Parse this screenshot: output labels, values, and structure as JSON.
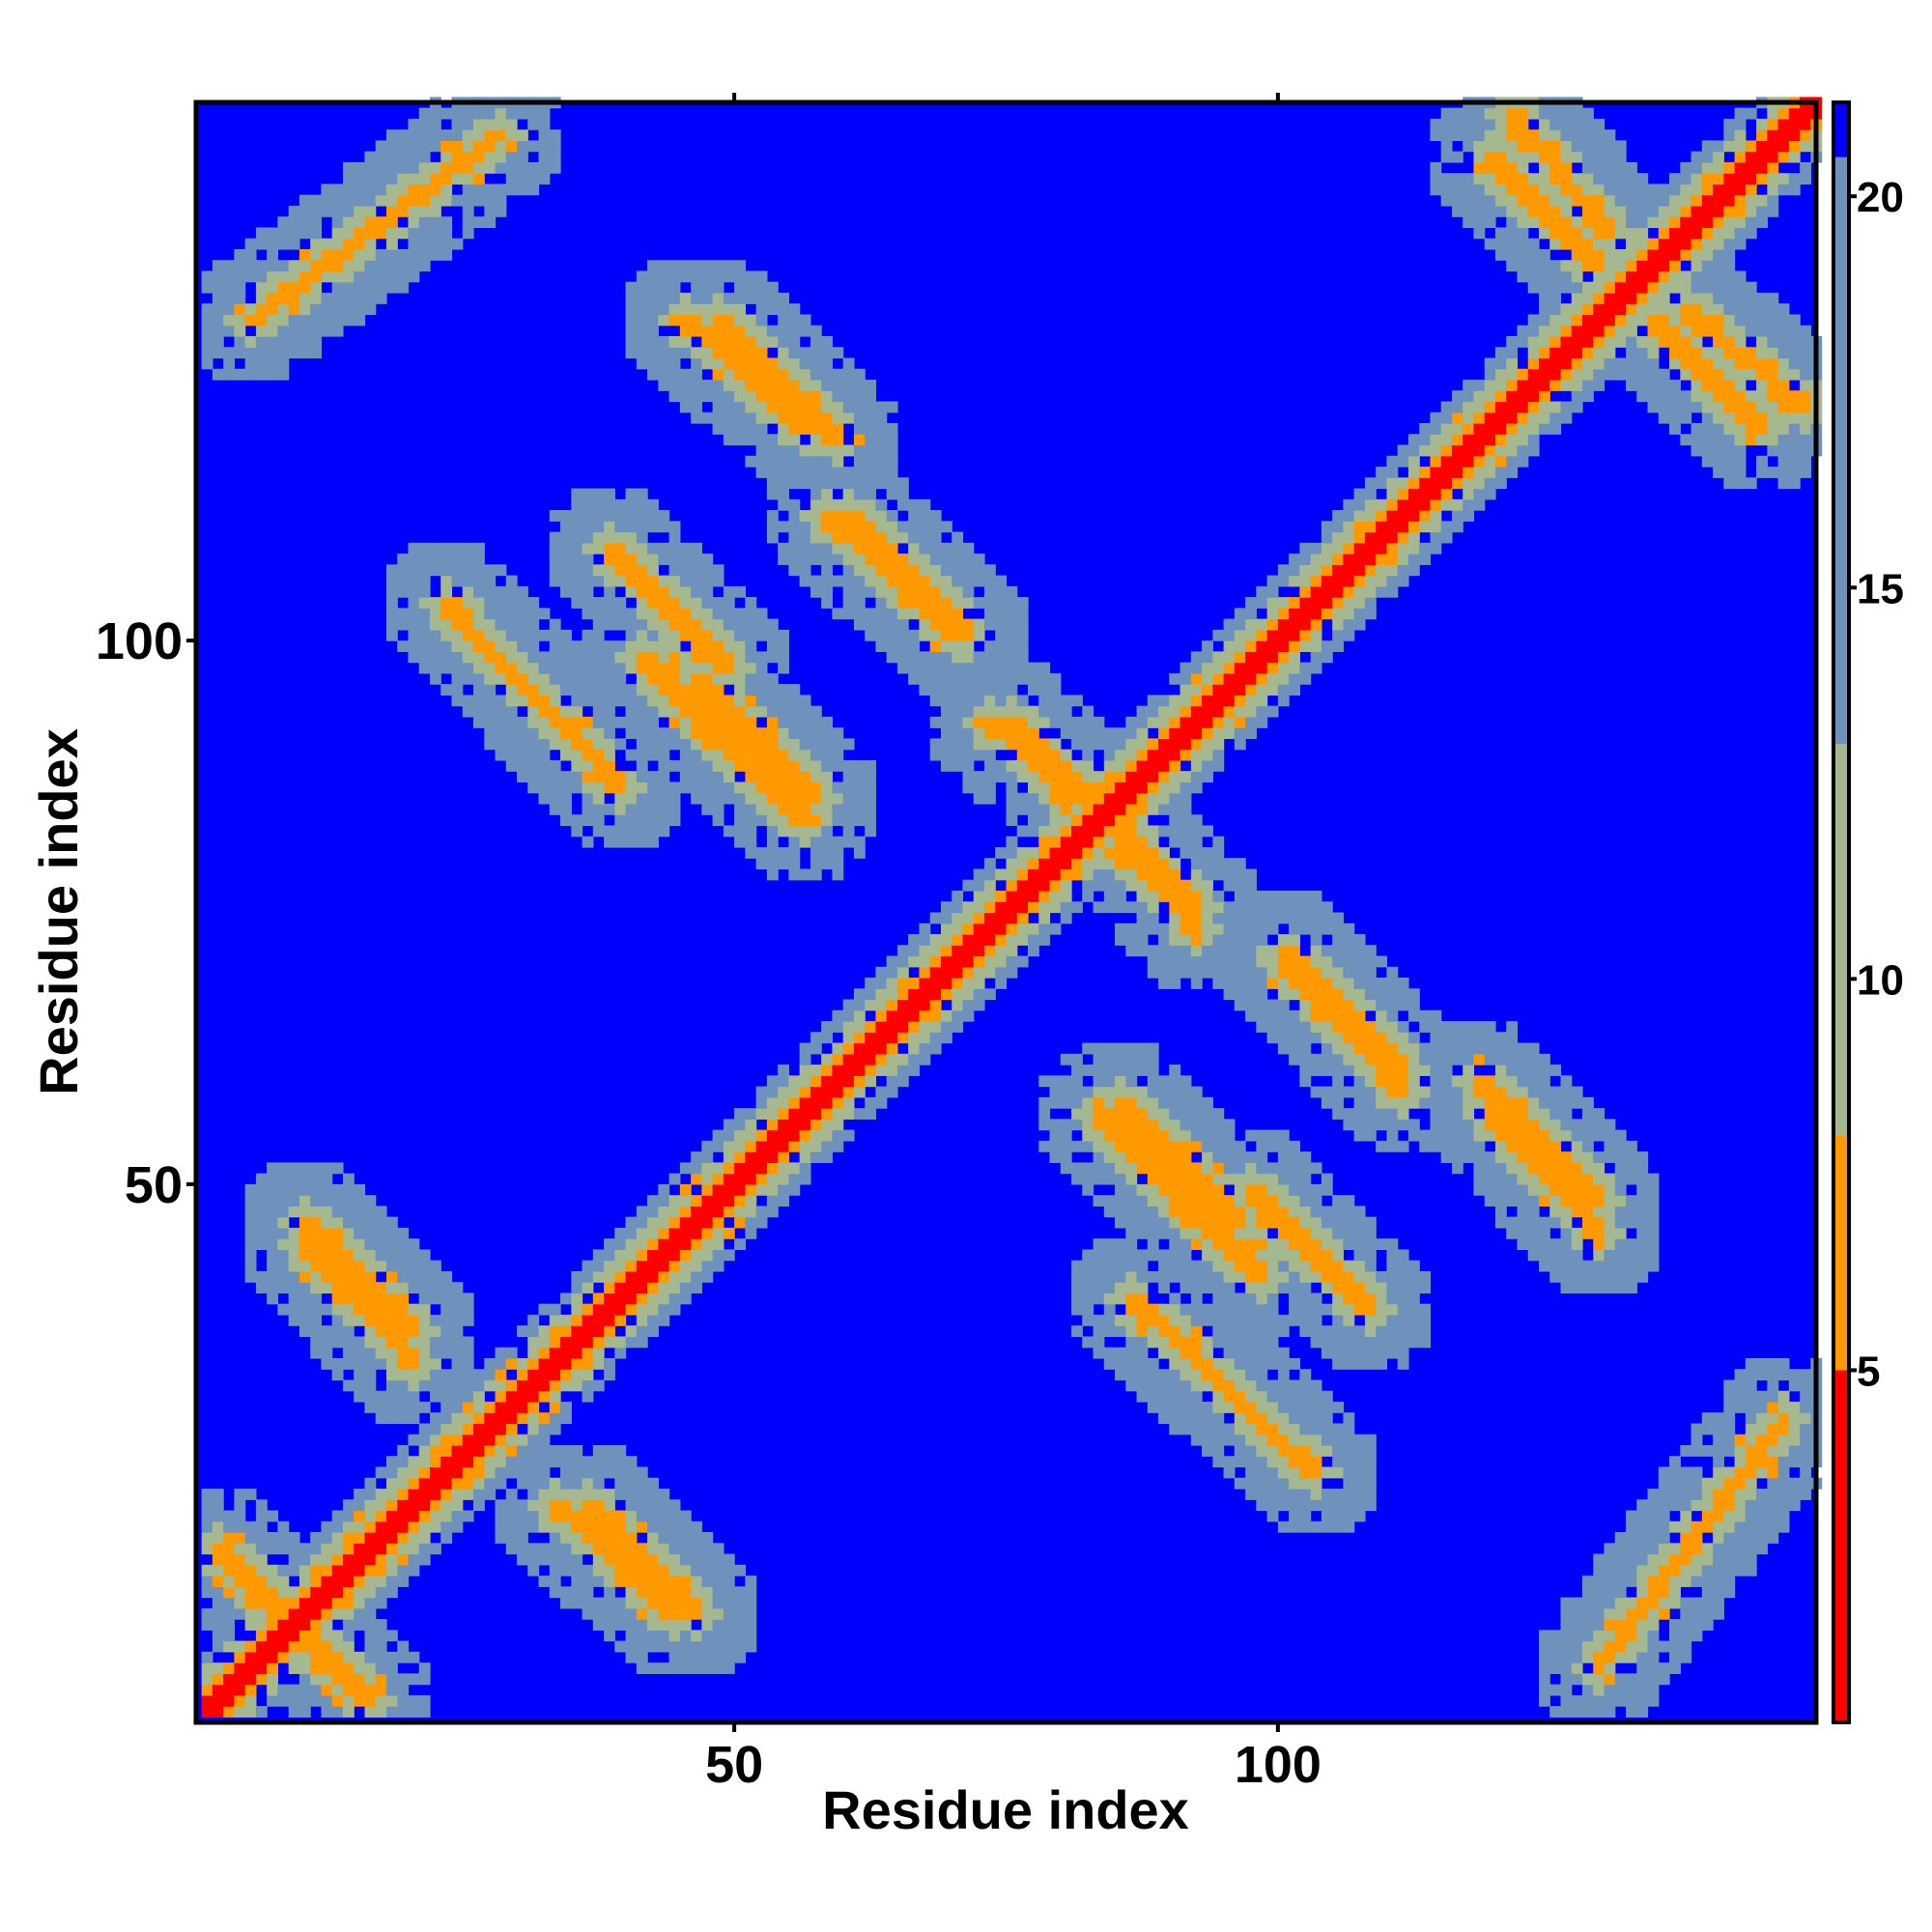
{
  "chart_data": {
    "type": "heatmap",
    "title": "",
    "xlabel": "Residue index",
    "ylabel": "Residue index",
    "xlim": [
      1,
      149
    ],
    "ylim": [
      1,
      149
    ],
    "x_ticks": [
      50,
      100
    ],
    "y_ticks": [
      50,
      100
    ],
    "colorbar": {
      "ticks": [
        5,
        10,
        15,
        20
      ],
      "range": [
        0.5,
        21.2
      ],
      "bands": [
        {
          "from": 0.5,
          "to": 5.0,
          "color": "#ff0000"
        },
        {
          "from": 5.0,
          "to": 8.0,
          "color": "#ff9900"
        },
        {
          "from": 8.0,
          "to": 13.0,
          "color": "#a6b88f"
        },
        {
          "from": 13.0,
          "to": 20.5,
          "color": "#6f92bd"
        },
        {
          "from": 20.5,
          "to": 21.2,
          "color": "#0000ff"
        }
      ]
    },
    "grid": false,
    "legend": "colorbar-right",
    "diagonal_value": 2,
    "background_value": 21,
    "contact_bands": [
      {
        "i0": 2,
        "j0": 16,
        "i1": 12,
        "j1": 6
      },
      {
        "i0": 10,
        "j0": 46,
        "i1": 20,
        "j1": 36
      },
      {
        "i0": 33,
        "j0": 20,
        "i1": 44,
        "j1": 10
      },
      {
        "i0": 23,
        "j0": 103,
        "i1": 39,
        "j1": 86
      },
      {
        "i0": 41,
        "j0": 98,
        "i1": 56,
        "j1": 83
      },
      {
        "i0": 45,
        "j0": 129,
        "i1": 56,
        "j1": 119
      },
      {
        "i0": 58,
        "j0": 111,
        "i1": 70,
        "j1": 100
      },
      {
        "i0": 75,
        "j0": 92,
        "i1": 86,
        "j1": 82
      },
      {
        "i0": 85,
        "j0": 81,
        "i1": 92,
        "j1": 73
      },
      {
        "i0": 85,
        "j0": 57,
        "i1": 96,
        "j1": 46
      },
      {
        "i0": 97,
        "j0": 49,
        "i1": 108,
        "j1": 38
      },
      {
        "i0": 100,
        "j0": 71,
        "i1": 111,
        "j1": 60
      },
      {
        "i0": 118,
        "j0": 59,
        "i1": 129,
        "j1": 48
      },
      {
        "i0": 119,
        "j0": 144,
        "i1": 129,
        "j1": 134
      },
      {
        "i0": 137,
        "j0": 130,
        "i1": 148,
        "j1": 121
      },
      {
        "i0": 129,
        "j0": 5,
        "i1": 146,
        "j1": 28
      }
    ]
  },
  "axes": {
    "x_tick_labels": [
      "50",
      "100"
    ],
    "y_tick_labels": [
      "50",
      "100"
    ],
    "colorbar_tick_labels": [
      "5",
      "10",
      "15",
      "20"
    ],
    "xlabel": "Residue index",
    "ylabel": "Residue index"
  }
}
